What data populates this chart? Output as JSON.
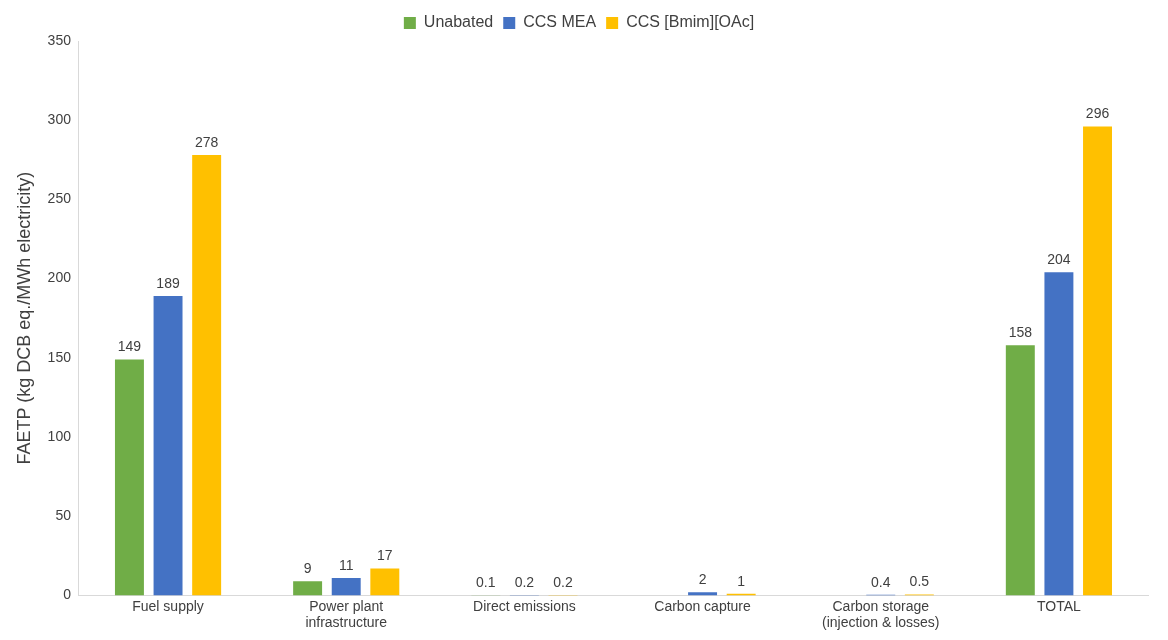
{
  "chart_data": {
    "type": "bar",
    "ylabel": "FAETP (kg DCB eq./MWh electricity)",
    "categories": [
      "Fuel supply",
      "Power plant infrastructure",
      "Direct emissions",
      "Carbon capture",
      "Carbon storage (injection & losses)",
      "TOTAL"
    ],
    "series": [
      {
        "name": "Unabated",
        "color": "#70ad47",
        "values": [
          149,
          9,
          0.1,
          null,
          null,
          158
        ]
      },
      {
        "name": "CCS MEA",
        "color": "#4472c4",
        "values": [
          189,
          11,
          0.2,
          2,
          0.4,
          204
        ]
      },
      {
        "name": "CCS [Bmim][OAc]",
        "color": "#ffc000",
        "values": [
          278,
          17,
          0.2,
          1,
          0.5,
          296
        ]
      }
    ],
    "ylim": [
      0,
      350
    ],
    "yticks": [
      0,
      50,
      100,
      150,
      200,
      250,
      300,
      350
    ],
    "grid": false,
    "legend": "top",
    "data_labels": true
  }
}
